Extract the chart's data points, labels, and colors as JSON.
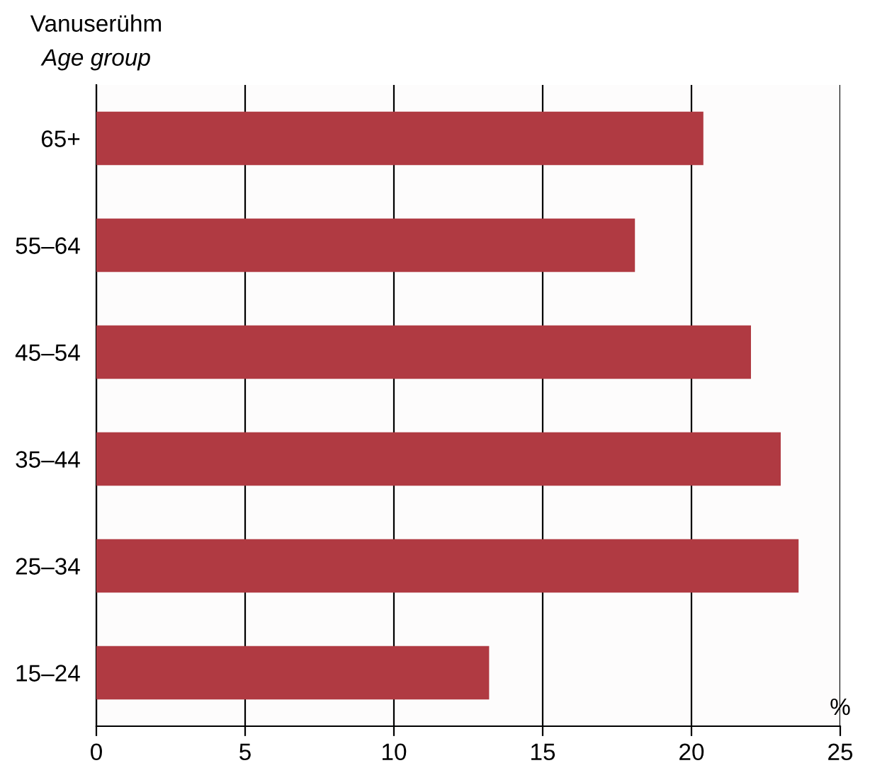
{
  "chart_data": {
    "type": "bar",
    "orientation": "horizontal",
    "title": "Vanuserühm",
    "subtitle": "Age group",
    "xlabel": "%",
    "categories": [
      "65+",
      "55–64",
      "45–54",
      "35–44",
      "25–34",
      "15–24"
    ],
    "values": [
      20.4,
      18.1,
      22.0,
      23.0,
      23.6,
      13.2
    ],
    "color": "#b03a42",
    "xlim": [
      0,
      25
    ],
    "xticks": [
      0,
      5,
      10,
      15,
      20,
      25
    ],
    "grid": "x",
    "legend": false
  }
}
